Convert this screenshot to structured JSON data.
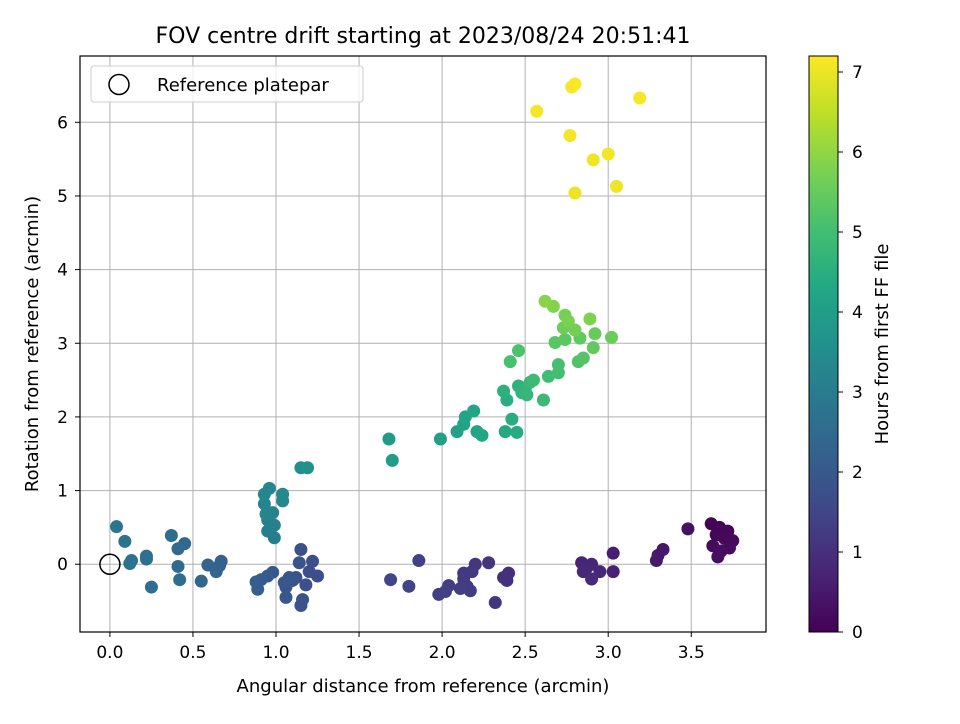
{
  "chart_data": {
    "type": "scatter",
    "title": "FOV centre drift starting at 2023/08/24 20:51:41",
    "xlabel": "Angular distance from reference (arcmin)",
    "ylabel": "Rotation from reference (arcmin)",
    "xlim": [
      -0.18,
      3.95
    ],
    "ylim": [
      -0.92,
      6.9
    ],
    "x_ticks": [
      0,
      0.5,
      1,
      1.5,
      2,
      2.5,
      3,
      3.5
    ],
    "x_tick_labels": [
      "0.0",
      "0.5",
      "1.0",
      "1.5",
      "2.0",
      "2.5",
      "3.0",
      "3.5"
    ],
    "y_ticks": [
      0,
      1,
      2,
      3,
      4,
      5,
      6
    ],
    "y_tick_labels": [
      "0",
      "1",
      "2",
      "3",
      "4",
      "5",
      "6"
    ],
    "grid": true,
    "legend": {
      "placement": "upper-left",
      "label": "Reference platepar"
    },
    "reference_point": {
      "x": 0,
      "y": 0
    },
    "colorbar": {
      "label": "Hours from first FF file",
      "colormap": "viridis",
      "range": [
        0,
        7.2
      ],
      "ticks": [
        0,
        1,
        2,
        3,
        4,
        5,
        6,
        7
      ],
      "tick_labels": [
        "0",
        "1",
        "2",
        "3",
        "4",
        "5",
        "6",
        "7"
      ]
    },
    "points": [
      {
        "x": 3.62,
        "y": 0.55,
        "t": 0.05
      },
      {
        "x": 3.67,
        "y": 0.5,
        "t": 0.08
      },
      {
        "x": 3.72,
        "y": 0.45,
        "t": 0.1
      },
      {
        "x": 3.65,
        "y": 0.4,
        "t": 0.12
      },
      {
        "x": 3.7,
        "y": 0.35,
        "t": 0.15
      },
      {
        "x": 3.75,
        "y": 0.32,
        "t": 0.18
      },
      {
        "x": 3.63,
        "y": 0.25,
        "t": 0.2
      },
      {
        "x": 3.73,
        "y": 0.22,
        "t": 0.22
      },
      {
        "x": 3.68,
        "y": 0.18,
        "t": 0.24
      },
      {
        "x": 3.66,
        "y": 0.1,
        "t": 0.26
      },
      {
        "x": 3.48,
        "y": 0.48,
        "t": 0.35
      },
      {
        "x": 3.33,
        "y": 0.2,
        "t": 0.45
      },
      {
        "x": 3.3,
        "y": 0.12,
        "t": 0.48
      },
      {
        "x": 3.29,
        "y": 0.05,
        "t": 0.5
      },
      {
        "x": 3.03,
        "y": 0.15,
        "t": 0.6
      },
      {
        "x": 3.03,
        "y": -0.1,
        "t": 0.65
      },
      {
        "x": 2.84,
        "y": 0.02,
        "t": 0.72
      },
      {
        "x": 2.9,
        "y": 0.0,
        "t": 0.75
      },
      {
        "x": 2.87,
        "y": -0.05,
        "t": 0.78
      },
      {
        "x": 2.85,
        "y": -0.1,
        "t": 0.8
      },
      {
        "x": 2.95,
        "y": -0.1,
        "t": 0.82
      },
      {
        "x": 2.9,
        "y": -0.2,
        "t": 0.85
      },
      {
        "x": 2.4,
        "y": -0.12,
        "t": 0.95
      },
      {
        "x": 2.37,
        "y": -0.18,
        "t": 0.98
      },
      {
        "x": 2.39,
        "y": -0.22,
        "t": 1.0
      },
      {
        "x": 2.28,
        "y": 0.02,
        "t": 1.05
      },
      {
        "x": 2.32,
        "y": -0.52,
        "t": 1.1
      },
      {
        "x": 2.2,
        "y": 0.0,
        "t": 1.15
      },
      {
        "x": 2.18,
        "y": -0.1,
        "t": 1.18
      },
      {
        "x": 2.13,
        "y": -0.12,
        "t": 1.2
      },
      {
        "x": 2.15,
        "y": -0.3,
        "t": 1.22
      },
      {
        "x": 2.13,
        "y": -0.2,
        "t": 1.24
      },
      {
        "x": 2.17,
        "y": -0.36,
        "t": 1.26
      },
      {
        "x": 2.11,
        "y": -0.33,
        "t": 1.28
      },
      {
        "x": 2.04,
        "y": -0.29,
        "t": 1.3
      },
      {
        "x": 1.98,
        "y": -0.41,
        "t": 1.32
      },
      {
        "x": 2.02,
        "y": -0.37,
        "t": 1.34
      },
      {
        "x": 1.86,
        "y": 0.05,
        "t": 1.4
      },
      {
        "x": 1.8,
        "y": -0.3,
        "t": 1.45
      },
      {
        "x": 1.69,
        "y": -0.21,
        "t": 1.5
      },
      {
        "x": 1.25,
        "y": -0.16,
        "t": 1.7
      },
      {
        "x": 1.22,
        "y": 0.04,
        "t": 1.72
      },
      {
        "x": 1.2,
        "y": -0.1,
        "t": 1.74
      },
      {
        "x": 1.18,
        "y": -0.28,
        "t": 1.76
      },
      {
        "x": 1.15,
        "y": 0.2,
        "t": 1.78
      },
      {
        "x": 1.16,
        "y": -0.48,
        "t": 1.8
      },
      {
        "x": 1.15,
        "y": -0.56,
        "t": 1.82
      },
      {
        "x": 1.12,
        "y": -0.18,
        "t": 1.84
      },
      {
        "x": 1.14,
        "y": 0.02,
        "t": 1.86
      },
      {
        "x": 1.1,
        "y": -0.22,
        "t": 1.88
      },
      {
        "x": 1.08,
        "y": -0.18,
        "t": 1.9
      },
      {
        "x": 1.06,
        "y": -0.31,
        "t": 1.92
      },
      {
        "x": 1.06,
        "y": -0.45,
        "t": 1.94
      },
      {
        "x": 1.05,
        "y": -0.25,
        "t": 1.96
      },
      {
        "x": 0.98,
        "y": -0.11,
        "t": 1.98
      },
      {
        "x": 0.95,
        "y": -0.16,
        "t": 2.0
      },
      {
        "x": 0.91,
        "y": -0.21,
        "t": 2.05
      },
      {
        "x": 0.89,
        "y": -0.34,
        "t": 2.1
      },
      {
        "x": 0.88,
        "y": -0.24,
        "t": 2.12
      },
      {
        "x": 0.67,
        "y": 0.04,
        "t": 2.25
      },
      {
        "x": 0.66,
        "y": -0.02,
        "t": 2.28
      },
      {
        "x": 0.64,
        "y": -0.1,
        "t": 2.3
      },
      {
        "x": 0.59,
        "y": -0.01,
        "t": 2.32
      },
      {
        "x": 0.55,
        "y": -0.23,
        "t": 2.35
      },
      {
        "x": 0.45,
        "y": 0.28,
        "t": 2.45
      },
      {
        "x": 0.41,
        "y": 0.21,
        "t": 2.48
      },
      {
        "x": 0.41,
        "y": -0.03,
        "t": 2.5
      },
      {
        "x": 0.42,
        "y": -0.21,
        "t": 2.52
      },
      {
        "x": 0.37,
        "y": 0.39,
        "t": 2.55
      },
      {
        "x": 0.25,
        "y": -0.31,
        "t": 2.6
      },
      {
        "x": 0.22,
        "y": 0.11,
        "t": 2.62
      },
      {
        "x": 0.22,
        "y": 0.07,
        "t": 2.64
      },
      {
        "x": 0.13,
        "y": 0.05,
        "t": 2.68
      },
      {
        "x": 0.12,
        "y": 0.01,
        "t": 2.7
      },
      {
        "x": 0.09,
        "y": 0.31,
        "t": 2.75
      },
      {
        "x": 0.04,
        "y": 0.51,
        "t": 2.8
      },
      {
        "x": 0.99,
        "y": 0.36,
        "t": 3.0
      },
      {
        "x": 0.95,
        "y": 0.45,
        "t": 3.05
      },
      {
        "x": 0.99,
        "y": 0.53,
        "t": 3.1
      },
      {
        "x": 0.95,
        "y": 0.6,
        "t": 3.15
      },
      {
        "x": 0.98,
        "y": 0.7,
        "t": 3.2
      },
      {
        "x": 0.94,
        "y": 0.68,
        "t": 3.22
      },
      {
        "x": 0.93,
        "y": 0.82,
        "t": 3.25
      },
      {
        "x": 0.93,
        "y": 0.95,
        "t": 3.28
      },
      {
        "x": 0.96,
        "y": 1.03,
        "t": 3.3
      },
      {
        "x": 1.04,
        "y": 0.86,
        "t": 3.35
      },
      {
        "x": 1.04,
        "y": 0.95,
        "t": 3.38
      },
      {
        "x": 1.15,
        "y": 1.31,
        "t": 3.55
      },
      {
        "x": 1.19,
        "y": 1.31,
        "t": 3.6
      },
      {
        "x": 1.68,
        "y": 1.7,
        "t": 3.9
      },
      {
        "x": 1.7,
        "y": 1.41,
        "t": 3.95
      },
      {
        "x": 1.99,
        "y": 1.7,
        "t": 4.05
      },
      {
        "x": 2.09,
        "y": 1.8,
        "t": 4.1
      },
      {
        "x": 2.13,
        "y": 1.9,
        "t": 4.15
      },
      {
        "x": 2.14,
        "y": 2.0,
        "t": 4.18
      },
      {
        "x": 2.19,
        "y": 2.08,
        "t": 4.2
      },
      {
        "x": 2.21,
        "y": 1.8,
        "t": 4.25
      },
      {
        "x": 2.24,
        "y": 1.75,
        "t": 4.28
      },
      {
        "x": 2.38,
        "y": 1.8,
        "t": 4.35
      },
      {
        "x": 2.45,
        "y": 1.79,
        "t": 4.4
      },
      {
        "x": 2.42,
        "y": 1.97,
        "t": 4.45
      },
      {
        "x": 2.39,
        "y": 2.23,
        "t": 4.5
      },
      {
        "x": 2.37,
        "y": 2.35,
        "t": 4.55
      },
      {
        "x": 2.46,
        "y": 2.42,
        "t": 4.6
      },
      {
        "x": 2.48,
        "y": 2.33,
        "t": 4.65
      },
      {
        "x": 2.5,
        "y": 2.38,
        "t": 4.7
      },
      {
        "x": 2.51,
        "y": 2.3,
        "t": 4.75
      },
      {
        "x": 2.53,
        "y": 2.47,
        "t": 4.8
      },
      {
        "x": 2.61,
        "y": 2.23,
        "t": 4.85
      },
      {
        "x": 2.55,
        "y": 2.5,
        "t": 4.9
      },
      {
        "x": 2.64,
        "y": 2.55,
        "t": 4.95
      },
      {
        "x": 2.7,
        "y": 2.6,
        "t": 5.0
      },
      {
        "x": 2.7,
        "y": 2.71,
        "t": 5.05
      },
      {
        "x": 2.41,
        "y": 2.75,
        "t": 5.1
      },
      {
        "x": 2.46,
        "y": 2.9,
        "t": 5.15
      },
      {
        "x": 2.82,
        "y": 2.75,
        "t": 5.2
      },
      {
        "x": 2.85,
        "y": 2.8,
        "t": 5.25
      },
      {
        "x": 2.68,
        "y": 3.01,
        "t": 5.3
      },
      {
        "x": 2.74,
        "y": 3.05,
        "t": 5.35
      },
      {
        "x": 2.83,
        "y": 3.07,
        "t": 5.4
      },
      {
        "x": 2.91,
        "y": 2.94,
        "t": 5.45
      },
      {
        "x": 2.92,
        "y": 3.13,
        "t": 5.5
      },
      {
        "x": 3.02,
        "y": 3.08,
        "t": 5.55
      },
      {
        "x": 2.73,
        "y": 3.21,
        "t": 5.6
      },
      {
        "x": 2.8,
        "y": 3.18,
        "t": 5.65
      },
      {
        "x": 2.74,
        "y": 3.38,
        "t": 5.7
      },
      {
        "x": 2.76,
        "y": 3.3,
        "t": 5.75
      },
      {
        "x": 2.89,
        "y": 3.33,
        "t": 5.8
      },
      {
        "x": 2.67,
        "y": 3.5,
        "t": 5.85
      },
      {
        "x": 2.62,
        "y": 3.57,
        "t": 5.9
      },
      {
        "x": 2.8,
        "y": 5.04,
        "t": 7.0
      },
      {
        "x": 3.05,
        "y": 5.13,
        "t": 7.02
      },
      {
        "x": 2.91,
        "y": 5.49,
        "t": 7.05
      },
      {
        "x": 3.0,
        "y": 5.57,
        "t": 7.08
      },
      {
        "x": 2.77,
        "y": 5.82,
        "t": 7.1
      },
      {
        "x": 2.57,
        "y": 6.15,
        "t": 7.12
      },
      {
        "x": 3.19,
        "y": 6.33,
        "t": 7.14
      },
      {
        "x": 2.78,
        "y": 6.48,
        "t": 7.16
      },
      {
        "x": 2.8,
        "y": 6.52,
        "t": 7.18
      }
    ]
  }
}
